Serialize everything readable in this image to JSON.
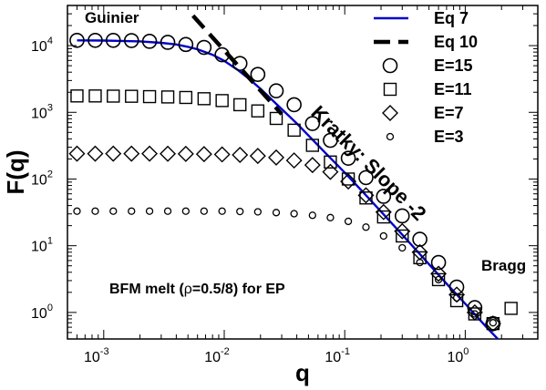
{
  "chart_data": {
    "type": "scatter",
    "xlabel": "q",
    "ylabel": "F(q)",
    "x_scale": "log",
    "y_scale": "log",
    "xlim": [
      0.0005,
      4.0
    ],
    "ylim": [
      0.4,
      40000
    ],
    "x_ticks": [
      {
        "value": 0.001,
        "base": "10",
        "exp": "-3"
      },
      {
        "value": 0.01,
        "base": "10",
        "exp": "-2"
      },
      {
        "value": 0.1,
        "base": "10",
        "exp": "-1"
      },
      {
        "value": 1,
        "base": "10",
        "exp": "0"
      }
    ],
    "y_ticks": [
      {
        "value": 1,
        "base": "10",
        "exp": "0"
      },
      {
        "value": 10,
        "base": "10",
        "exp": "1"
      },
      {
        "value": 100,
        "base": "10",
        "exp": "2"
      },
      {
        "value": 1000,
        "base": "10",
        "exp": "3"
      },
      {
        "value": 10000,
        "base": "10",
        "exp": "4"
      }
    ],
    "grid": false,
    "legend_position": "top-right",
    "series": [
      {
        "name": "Eq 7",
        "kind": "line",
        "style": "solid",
        "color": "#0000cc",
        "x": [
          0.0006,
          0.001,
          0.002,
          0.003,
          0.004,
          0.005,
          0.006,
          0.008,
          0.01,
          0.013,
          0.016,
          0.02,
          0.025,
          0.03,
          0.04,
          0.05,
          0.07,
          0.1,
          0.15,
          0.2,
          0.3,
          0.5,
          0.7,
          1.0,
          1.5,
          2.0
        ],
        "y": [
          12000,
          11900,
          11600,
          11000,
          10400,
          9600,
          8800,
          7300,
          5900,
          4300,
          3200,
          2250,
          1530,
          1120,
          680,
          450,
          240,
          125,
          57,
          32.5,
          14.6,
          5.3,
          2.7,
          1.35,
          0.6,
          0.35
        ]
      },
      {
        "name": "Eq 10",
        "kind": "line",
        "style": "dashed",
        "color": "#000000",
        "x": [
          0.0055,
          0.03
        ],
        "y": [
          28000,
          940
        ]
      },
      {
        "name": "E=15",
        "kind": "marker",
        "marker": "circle-large",
        "color": "#000000",
        "x": [
          0.0006,
          0.00085,
          0.0012,
          0.0017,
          0.0024,
          0.0034,
          0.0048,
          0.0068,
          0.0096,
          0.0135,
          0.019,
          0.027,
          0.038,
          0.054,
          0.076,
          0.107,
          0.15,
          0.21,
          0.3,
          0.42,
          0.6,
          0.85,
          1.2,
          1.7
        ],
        "y": [
          12000,
          12000,
          12000,
          11900,
          11600,
          11200,
          10400,
          9400,
          7300,
          5400,
          3700,
          2100,
          1300,
          680,
          380,
          205,
          105,
          55,
          28,
          12.5,
          5.6,
          2.4,
          1.18,
          0.68
        ]
      },
      {
        "name": "E=11",
        "kind": "marker",
        "marker": "square",
        "color": "#000000",
        "x": [
          0.0006,
          0.00085,
          0.0012,
          0.0017,
          0.0024,
          0.0034,
          0.0048,
          0.0068,
          0.0096,
          0.0135,
          0.019,
          0.027,
          0.038,
          0.054,
          0.076,
          0.107,
          0.15,
          0.21,
          0.3,
          0.42,
          0.6,
          0.85,
          1.2,
          1.7,
          2.4
        ],
        "y": [
          1760,
          1760,
          1750,
          1740,
          1720,
          1700,
          1670,
          1600,
          1500,
          1300,
          1050,
          810,
          540,
          320,
          180,
          100,
          52,
          27,
          14,
          6.6,
          3.1,
          1.5,
          0.95,
          0.68,
          1.15
        ]
      },
      {
        "name": "E=7",
        "kind": "marker",
        "marker": "diamond",
        "color": "#000000",
        "x": [
          0.0006,
          0.00085,
          0.0012,
          0.0017,
          0.0024,
          0.0034,
          0.0048,
          0.0068,
          0.0096,
          0.0135,
          0.019,
          0.027,
          0.038,
          0.054,
          0.076,
          0.107,
          0.15,
          0.21,
          0.3,
          0.42,
          0.6,
          0.85,
          1.2,
          1.7
        ],
        "y": [
          240,
          240,
          240,
          240,
          240,
          239,
          238,
          236,
          234,
          230,
          222,
          210,
          190,
          162,
          128,
          92,
          57,
          32,
          16.5,
          8,
          3.8,
          1.85,
          1.0,
          0.68
        ]
      },
      {
        "name": "E=3",
        "kind": "marker",
        "marker": "circle-small",
        "color": "#000000",
        "x": [
          0.0006,
          0.00085,
          0.0012,
          0.0017,
          0.0024,
          0.0034,
          0.0048,
          0.0068,
          0.0096,
          0.0135,
          0.019,
          0.027,
          0.038,
          0.054,
          0.076,
          0.107,
          0.15,
          0.21,
          0.3,
          0.42,
          0.6,
          0.85,
          1.2,
          1.7
        ],
        "y": [
          33,
          33,
          33,
          33,
          33,
          33,
          33,
          33,
          33,
          32.6,
          32.2,
          31.4,
          30.2,
          28.6,
          26.4,
          23.2,
          19,
          14,
          9.3,
          5.6,
          3.1,
          1.65,
          0.95,
          0.7
        ]
      }
    ],
    "annotations": [
      {
        "id": "guinier",
        "text": "Guinier",
        "position": "top-left"
      },
      {
        "id": "kratky",
        "text": "Kratky: Slope -2",
        "rotation_deg": 45
      },
      {
        "id": "bragg",
        "text": "Bragg",
        "position": "bottom-right"
      },
      {
        "id": "system",
        "text_before": "BFM melt (",
        "symbol": "ρ",
        "text_after": "=0.5/8) for EP",
        "position": "bottom-left"
      }
    ]
  }
}
